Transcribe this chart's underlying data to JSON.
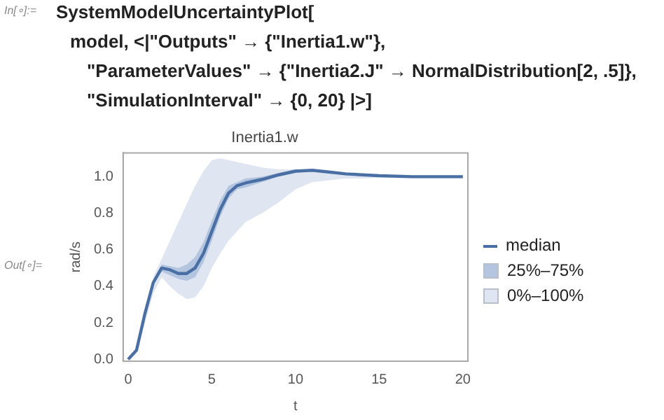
{
  "chart_data": {
    "type": "line",
    "title": "Inertia1.w",
    "xlabel": "t",
    "ylabel": "rad/s",
    "annotations": [
      "In[∘]:=",
      "SystemModelUncertaintyPlot[",
      "model, <|\"Outputs\" → {\"Inertia1.w\"},",
      "\"ParameterValues\" → {\"Inertia2.J\" → NormalDistribution[2, .5]},",
      "\"SimulationInterval\" → {0, 20} |>]",
      "Out[∘]="
    ],
    "x": [
      0,
      0.5,
      1,
      1.5,
      2,
      2.5,
      3,
      3.5,
      4,
      4.5,
      5,
      5.5,
      6,
      6.5,
      7,
      8,
      9,
      10,
      11,
      12,
      13,
      14,
      15,
      17,
      20
    ],
    "series": [
      {
        "name": "median",
        "type": "line",
        "color": "#4a6fa5",
        "values": [
          0,
          0.05,
          0.25,
          0.42,
          0.5,
          0.49,
          0.47,
          0.47,
          0.5,
          0.58,
          0.7,
          0.82,
          0.91,
          0.95,
          0.965,
          0.985,
          1.01,
          1.03,
          1.035,
          1.025,
          1.015,
          1.01,
          1.005,
          1.0,
          1.0
        ]
      },
      {
        "name": "25%–75%",
        "type": "area",
        "color": "#b4c5e0",
        "values": [
          null,
          null,
          null,
          null,
          null,
          null,
          null,
          null,
          null,
          null,
          null,
          null,
          null,
          null,
          null,
          null,
          null,
          null,
          null,
          null,
          null,
          null,
          null,
          null,
          null
        ],
        "lower": [
          0,
          0.05,
          0.24,
          0.41,
          0.48,
          0.46,
          0.44,
          0.43,
          0.45,
          0.53,
          0.65,
          0.78,
          0.88,
          0.93,
          0.94,
          0.97,
          1.0,
          1.02,
          1.03,
          1.02,
          1.01,
          1.005,
          1.0,
          1.0,
          1.0
        ],
        "upper": [
          0,
          0.05,
          0.26,
          0.43,
          0.52,
          0.51,
          0.5,
          0.52,
          0.56,
          0.64,
          0.76,
          0.87,
          0.95,
          0.97,
          0.99,
          1.0,
          1.02,
          1.04,
          1.04,
          1.03,
          1.02,
          1.01,
          1.01,
          1.0,
          1.0
        ]
      },
      {
        "name": "0%–100%",
        "type": "area",
        "color": "#dfe6f2",
        "values": [
          null,
          null,
          null,
          null,
          null,
          null,
          null,
          null,
          null,
          null,
          null,
          null,
          null,
          null,
          null,
          null,
          null,
          null,
          null,
          null,
          null,
          null,
          null,
          null,
          null
        ],
        "lower": [
          0,
          0.04,
          0.2,
          0.36,
          0.45,
          0.4,
          0.36,
          0.33,
          0.34,
          0.4,
          0.5,
          0.58,
          0.65,
          0.7,
          0.75,
          0.8,
          0.86,
          0.93,
          0.97,
          0.98,
          0.99,
          0.99,
          0.995,
          0.99,
          0.99
        ],
        "upper": [
          0,
          0.06,
          0.27,
          0.45,
          0.55,
          0.65,
          0.75,
          0.85,
          0.95,
          1.03,
          1.09,
          1.1,
          1.09,
          1.08,
          1.07,
          1.05,
          1.04,
          1.04,
          1.04,
          1.03,
          1.02,
          1.01,
          1.01,
          1.0,
          1.0
        ]
      }
    ],
    "xlim": [
      -0.3,
      20.3
    ],
    "xticks": [
      0,
      5,
      10,
      15,
      20
    ],
    "ylim": [
      -0.01,
      1.13
    ],
    "yticks": [
      {
        "value": 0,
        "label": "0.0"
      },
      {
        "value": 0.2,
        "label": "0.2"
      },
      {
        "value": 0.4,
        "label": "0.4"
      },
      {
        "value": 0.6,
        "label": "0.6"
      },
      {
        "value": 0.8,
        "label": "0.8"
      },
      {
        "value": 1.0,
        "label": "1.0"
      }
    ],
    "legend": "right",
    "grid": false
  }
}
